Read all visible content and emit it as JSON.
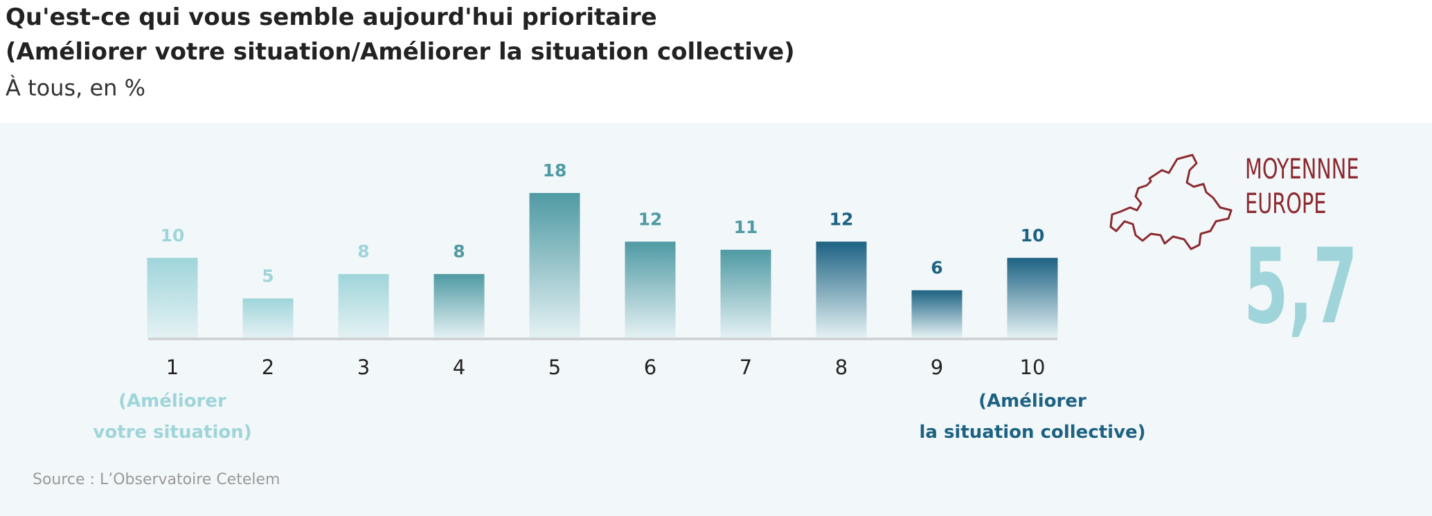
{
  "chart_data": {
    "type": "bar",
    "title_lines": [
      "Qu'est-ce qui vous semble aujourd'hui prioritaire",
      "(Améliorer votre situation/Améliorer la situation collective)"
    ],
    "subtitle": "À tous, en %",
    "categories": [
      "1",
      "2",
      "3",
      "4",
      "5",
      "6",
      "7",
      "8",
      "9",
      "10"
    ],
    "values": [
      10,
      5,
      8,
      8,
      18,
      12,
      11,
      12,
      6,
      10
    ],
    "colors": [
      "#9fd5da",
      "#9fd5da",
      "#9fd5da",
      "#4f9aa3",
      "#4f9aa3",
      "#4f9aa3",
      "#4f9aa3",
      "#1d6283",
      "#1d6283",
      "#1d6283"
    ],
    "annotations": [
      {
        "lines": [
          "(Améliorer",
          "votre situation)"
        ],
        "color": "#9fd5da"
      },
      {
        "lines": [
          "(Améliorer",
          "la situation collective)"
        ],
        "color": "#1d6283"
      }
    ],
    "europe_average": {
      "label_lines": [
        "MOYENNNE",
        "EUROPE"
      ],
      "label_color": "#8b2a2f",
      "value": {
        "value": 5.7,
        "label": "5,7"
      },
      "value_color": "#9fd5da"
    },
    "source": "Source : L’Observatoire Cetelem"
  }
}
